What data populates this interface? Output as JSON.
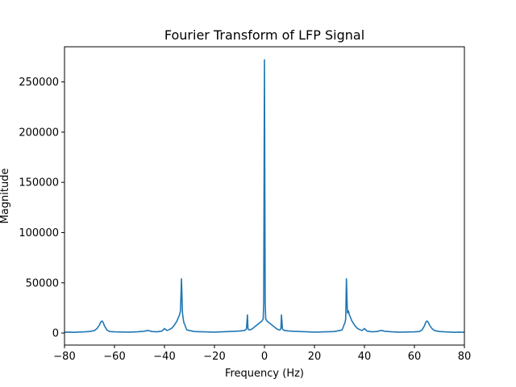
{
  "chart_data": {
    "type": "line",
    "title": "Fourier Transform of LFP Signal",
    "xlabel": "Frequency (Hz)",
    "ylabel": "Magnitude",
    "xlim": [
      -80,
      80
    ],
    "ylim": [
      -12000,
      285000
    ],
    "xticks": [
      -80,
      -60,
      -40,
      -20,
      0,
      20,
      40,
      60,
      80
    ],
    "yticks": [
      0,
      50000,
      100000,
      150000,
      200000,
      250000
    ],
    "grid": false,
    "color": "#1f77b4",
    "series": [
      {
        "x": [
          -80,
          -78,
          -76,
          -74,
          -72,
          -70,
          -68,
          -67,
          -66,
          -65.5,
          -65,
          -64.5,
          -64,
          -63,
          -62,
          -60,
          -57,
          -54,
          -51,
          -48,
          -47,
          -46,
          -45,
          -43,
          -41,
          -40,
          -39,
          -38,
          -37,
          -36,
          -35,
          -34,
          -33.6,
          -33.2,
          -32.8,
          -32.5,
          -32.2,
          -31.8,
          -31.4,
          -31,
          -30,
          -29,
          -28,
          -26,
          -24,
          -22,
          -20,
          -18,
          -16,
          -14,
          -12,
          -10,
          -8,
          -7.2,
          -6.8,
          -6.6,
          -6.4,
          -6,
          -5,
          -4,
          -3,
          -2,
          -1,
          -0.5,
          -0.3,
          0,
          0.3,
          0.5,
          1,
          2,
          3,
          4,
          5,
          6,
          6.4,
          6.6,
          6.8,
          7.2,
          8,
          10,
          12,
          14,
          16,
          18,
          20,
          22,
          24,
          26,
          28,
          29,
          30,
          31,
          31.4,
          31.8,
          32.2,
          32.5,
          32.8,
          33.2,
          33.6,
          34,
          35,
          36,
          37,
          38,
          39,
          40,
          41,
          43,
          45,
          46,
          47,
          48,
          51,
          54,
          57,
          60,
          62,
          63,
          64,
          64.5,
          65,
          65.5,
          66,
          67,
          68,
          70,
          72,
          74,
          76,
          78,
          80
        ],
        "y": [
          800,
          900,
          700,
          1000,
          1200,
          1500,
          2500,
          4500,
          8000,
          11000,
          12000,
          10500,
          7000,
          3000,
          1500,
          1200,
          1000,
          900,
          1200,
          1800,
          2500,
          2200,
          1500,
          1200,
          2000,
          4500,
          2500,
          3500,
          5000,
          8000,
          12000,
          18000,
          22000,
          54000,
          20000,
          14000,
          10000,
          8000,
          5000,
          3000,
          2500,
          2000,
          1500,
          1300,
          1200,
          1000,
          900,
          1100,
          1300,
          1500,
          1700,
          2000,
          2500,
          4000,
          18000,
          5000,
          3500,
          3000,
          4000,
          6000,
          8000,
          10000,
          12000,
          14000,
          30000,
          272000,
          30000,
          14000,
          12000,
          10000,
          8000,
          6000,
          4000,
          3000,
          3500,
          5000,
          18000,
          4000,
          2500,
          2000,
          1700,
          1500,
          1300,
          1100,
          900,
          1000,
          1200,
          1300,
          1500,
          2000,
          2500,
          3000,
          5000,
          8000,
          10000,
          14000,
          54000,
          20000,
          22000,
          18000,
          12000,
          8000,
          5000,
          3500,
          2500,
          4500,
          2000,
          1200,
          1500,
          2200,
          2500,
          1800,
          1200,
          900,
          1000,
          1200,
          1500,
          3000,
          7000,
          10500,
          12000,
          11000,
          8000,
          4500,
          2500,
          1500,
          1200,
          1000,
          700,
          900,
          800
        ]
      }
    ]
  }
}
